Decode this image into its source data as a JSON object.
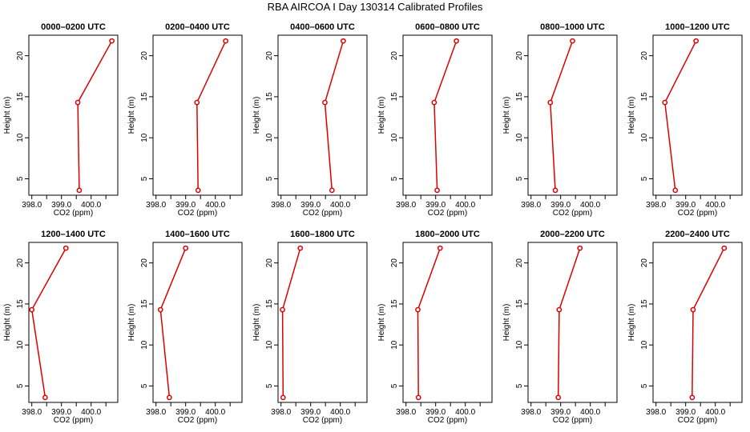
{
  "figure": {
    "title": "RBA AIRCOA I  Day 130314  Calibrated Profiles",
    "line_color": "#dd0000"
  },
  "chart_data": [
    {
      "type": "line",
      "title": "0000–0200 UTC",
      "xlabel": "CO2 (ppm)",
      "ylabel": "Height (m)",
      "xlim": [
        397.9,
        400.9
      ],
      "ylim": [
        3,
        22.5
      ],
      "xticks": [
        "398.0",
        "399.0",
        "400.0"
      ],
      "yticks": [
        "5",
        "10",
        "15",
        "20"
      ],
      "series": [
        {
          "x": [
            399.6,
            399.55,
            400.7
          ],
          "y": [
            3.6,
            14.3,
            21.8
          ]
        }
      ]
    },
    {
      "type": "line",
      "title": "0200–0400 UTC",
      "xlabel": "CO2 (ppm)",
      "ylabel": "Height (m)",
      "xlim": [
        397.9,
        400.9
      ],
      "ylim": [
        3,
        22.5
      ],
      "xticks": [
        "398.0",
        "399.0",
        "400.0"
      ],
      "yticks": [
        "5",
        "10",
        "15",
        "20"
      ],
      "series": [
        {
          "x": [
            399.42,
            399.38,
            400.35
          ],
          "y": [
            3.6,
            14.3,
            21.8
          ]
        }
      ]
    },
    {
      "type": "line",
      "title": "0400–0600 UTC",
      "xlabel": "CO2 (ppm)",
      "ylabel": "Height (m)",
      "xlim": [
        397.9,
        400.9
      ],
      "ylim": [
        3,
        22.5
      ],
      "xticks": [
        "398.0",
        "399.0",
        "400.0"
      ],
      "yticks": [
        "5",
        "10",
        "15",
        "20"
      ],
      "series": [
        {
          "x": [
            399.72,
            399.48,
            400.1
          ],
          "y": [
            3.6,
            14.3,
            21.8
          ]
        }
      ]
    },
    {
      "type": "line",
      "title": "0600–0800 UTC",
      "xlabel": "CO2 (ppm)",
      "ylabel": "Height (m)",
      "xlim": [
        397.9,
        400.9
      ],
      "ylim": [
        3,
        22.5
      ],
      "xticks": [
        "398.0",
        "399.0",
        "400.0"
      ],
      "yticks": [
        "5",
        "10",
        "15",
        "20"
      ],
      "series": [
        {
          "x": [
            399.05,
            398.95,
            399.7
          ],
          "y": [
            3.6,
            14.3,
            21.8
          ]
        }
      ]
    },
    {
      "type": "line",
      "title": "0800–1000 UTC",
      "xlabel": "CO2 (ppm)",
      "ylabel": "Height (m)",
      "xlim": [
        397.9,
        400.9
      ],
      "ylim": [
        3,
        22.5
      ],
      "xticks": [
        "398.0",
        "399.0",
        "400.0"
      ],
      "yticks": [
        "5",
        "10",
        "15",
        "20"
      ],
      "series": [
        {
          "x": [
            398.82,
            398.65,
            399.4
          ],
          "y": [
            3.6,
            14.3,
            21.8
          ]
        }
      ]
    },
    {
      "type": "line",
      "title": "1000–1200 UTC",
      "xlabel": "CO2 (ppm)",
      "ylabel": "Height (m)",
      "xlim": [
        397.9,
        400.9
      ],
      "ylim": [
        3,
        22.5
      ],
      "xticks": [
        "398.0",
        "399.0",
        "400.0"
      ],
      "yticks": [
        "5",
        "10",
        "15",
        "20"
      ],
      "series": [
        {
          "x": [
            398.65,
            398.3,
            399.35
          ],
          "y": [
            3.6,
            14.3,
            21.8
          ]
        }
      ]
    },
    {
      "type": "line",
      "title": "1200–1400 UTC",
      "xlabel": "CO2 (ppm)",
      "ylabel": "Height (m)",
      "xlim": [
        397.9,
        400.9
      ],
      "ylim": [
        3,
        22.5
      ],
      "xticks": [
        "398.0",
        "399.0",
        "400.0"
      ],
      "yticks": [
        "5",
        "10",
        "15",
        "20"
      ],
      "series": [
        {
          "x": [
            398.45,
            398.0,
            399.15
          ],
          "y": [
            3.6,
            14.3,
            21.8
          ]
        }
      ]
    },
    {
      "type": "line",
      "title": "1400–1600 UTC",
      "xlabel": "CO2 (ppm)",
      "ylabel": "Height (m)",
      "xlim": [
        397.9,
        400.9
      ],
      "ylim": [
        3,
        22.5
      ],
      "xticks": [
        "398.0",
        "399.0",
        "400.0"
      ],
      "yticks": [
        "5",
        "10",
        "15",
        "20"
      ],
      "series": [
        {
          "x": [
            398.45,
            398.15,
            399.0
          ],
          "y": [
            3.6,
            14.3,
            21.8
          ]
        }
      ]
    },
    {
      "type": "line",
      "title": "1600–1800 UTC",
      "xlabel": "CO2 (ppm)",
      "ylabel": "Height (m)",
      "xlim": [
        397.9,
        400.9
      ],
      "ylim": [
        3,
        22.5
      ],
      "xticks": [
        "398.0",
        "399.0",
        "400.0"
      ],
      "yticks": [
        "5",
        "10",
        "15",
        "20"
      ],
      "series": [
        {
          "x": [
            398.07,
            398.05,
            398.65
          ],
          "y": [
            3.6,
            14.3,
            21.8
          ]
        }
      ]
    },
    {
      "type": "line",
      "title": "1800–2000 UTC",
      "xlabel": "CO2 (ppm)",
      "ylabel": "Height (m)",
      "xlim": [
        397.9,
        400.9
      ],
      "ylim": [
        3,
        22.5
      ],
      "xticks": [
        "398.0",
        "399.0",
        "400.0"
      ],
      "yticks": [
        "5",
        "10",
        "15",
        "20"
      ],
      "series": [
        {
          "x": [
            398.42,
            398.4,
            399.15
          ],
          "y": [
            3.6,
            14.3,
            21.8
          ]
        }
      ]
    },
    {
      "type": "line",
      "title": "2000–2200 UTC",
      "xlabel": "CO2 (ppm)",
      "ylabel": "Height (m)",
      "xlim": [
        397.9,
        400.9
      ],
      "ylim": [
        3,
        22.5
      ],
      "xticks": [
        "398.0",
        "399.0",
        "400.0"
      ],
      "yticks": [
        "5",
        "10",
        "15",
        "20"
      ],
      "series": [
        {
          "x": [
            398.92,
            398.95,
            399.65
          ],
          "y": [
            3.6,
            14.3,
            21.8
          ]
        }
      ]
    },
    {
      "type": "line",
      "title": "2200–2400 UTC",
      "xlabel": "CO2 (ppm)",
      "ylabel": "Height (m)",
      "xlim": [
        397.9,
        400.9
      ],
      "ylim": [
        3,
        22.5
      ],
      "xticks": [
        "398.0",
        "399.0",
        "400.0"
      ],
      "yticks": [
        "5",
        "10",
        "15",
        "20"
      ],
      "series": [
        {
          "x": [
            399.22,
            399.25,
            400.3
          ],
          "y": [
            3.6,
            14.3,
            21.8
          ]
        }
      ]
    }
  ]
}
